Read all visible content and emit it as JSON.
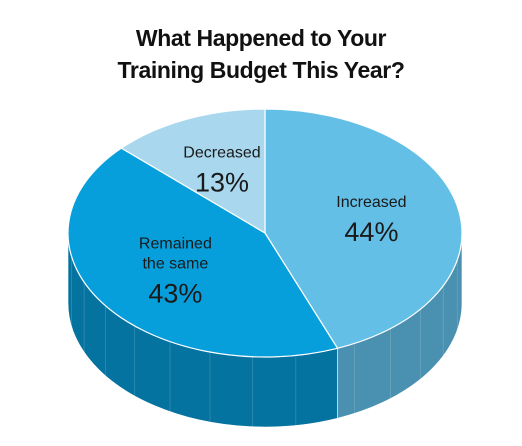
{
  "chart_data": {
    "type": "pie",
    "title_lines": [
      "What Happened to Your",
      "Training Budget This Year?"
    ],
    "slices": [
      {
        "label_lines": [
          "Increased"
        ],
        "value": 44,
        "value_label": "44%",
        "color": "#64bfe6",
        "side_color": "#4a90b0"
      },
      {
        "label_lines": [
          "Remained",
          "the same"
        ],
        "value": 43,
        "value_label": "43%",
        "color": "#079fdb",
        "side_color": "#0573a0"
      },
      {
        "label_lines": [
          "Decreased"
        ],
        "value": 13,
        "value_label": "13%",
        "color": "#a9d7ee",
        "side_color": "#7fb3cc"
      }
    ],
    "style": "3d-pie"
  }
}
